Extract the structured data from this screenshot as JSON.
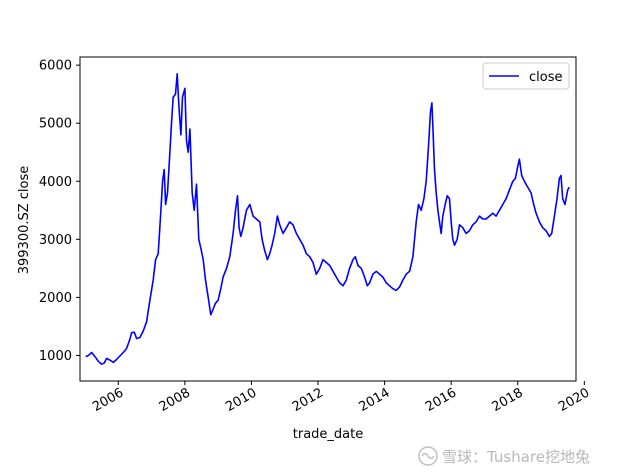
{
  "chart_data": {
    "type": "line",
    "title": "",
    "xlabel": "trade_date",
    "ylabel": "399300.SZ close",
    "xlim": [
      2004.85,
      2019.75
    ],
    "ylim": [
      560,
      6140
    ],
    "x_ticks": [
      2006,
      2008,
      2010,
      2012,
      2014,
      2016,
      2018,
      2020
    ],
    "x_tick_labels": [
      "2006",
      "2008",
      "2010",
      "2012",
      "2014",
      "2016",
      "2018",
      "2020"
    ],
    "y_ticks": [
      1000,
      2000,
      3000,
      4000,
      5000,
      6000
    ],
    "y_tick_labels": [
      "1000",
      "2000",
      "3000",
      "4000",
      "5000",
      "6000"
    ],
    "grid": false,
    "legend_position": "top-right",
    "series": [
      {
        "name": "close",
        "color": "#0000ff",
        "points": [
          [
            2005.02,
            980
          ],
          [
            2005.1,
            1000
          ],
          [
            2005.2,
            1050
          ],
          [
            2005.3,
            980
          ],
          [
            2005.4,
            900
          ],
          [
            2005.5,
            850
          ],
          [
            2005.58,
            870
          ],
          [
            2005.65,
            950
          ],
          [
            2005.75,
            920
          ],
          [
            2005.85,
            880
          ],
          [
            2005.95,
            930
          ],
          [
            2006.05,
            990
          ],
          [
            2006.15,
            1050
          ],
          [
            2006.25,
            1120
          ],
          [
            2006.35,
            1280
          ],
          [
            2006.4,
            1390
          ],
          [
            2006.48,
            1400
          ],
          [
            2006.55,
            1290
          ],
          [
            2006.65,
            1310
          ],
          [
            2006.75,
            1420
          ],
          [
            2006.85,
            1580
          ],
          [
            2006.95,
            1950
          ],
          [
            2007.05,
            2300
          ],
          [
            2007.12,
            2650
          ],
          [
            2007.2,
            2750
          ],
          [
            2007.28,
            3500
          ],
          [
            2007.33,
            4000
          ],
          [
            2007.38,
            4200
          ],
          [
            2007.42,
            3600
          ],
          [
            2007.48,
            3800
          ],
          [
            2007.55,
            4500
          ],
          [
            2007.6,
            5000
          ],
          [
            2007.65,
            5450
          ],
          [
            2007.72,
            5500
          ],
          [
            2007.77,
            5850
          ],
          [
            2007.82,
            5300
          ],
          [
            2007.88,
            4800
          ],
          [
            2007.93,
            5450
          ],
          [
            2008.0,
            5600
          ],
          [
            2008.05,
            4700
          ],
          [
            2008.1,
            4500
          ],
          [
            2008.15,
            4900
          ],
          [
            2008.22,
            3800
          ],
          [
            2008.28,
            3500
          ],
          [
            2008.35,
            3950
          ],
          [
            2008.42,
            3000
          ],
          [
            2008.48,
            2850
          ],
          [
            2008.55,
            2650
          ],
          [
            2008.62,
            2300
          ],
          [
            2008.7,
            2000
          ],
          [
            2008.78,
            1700
          ],
          [
            2008.85,
            1800
          ],
          [
            2008.92,
            1900
          ],
          [
            2009.0,
            1950
          ],
          [
            2009.08,
            2150
          ],
          [
            2009.15,
            2350
          ],
          [
            2009.25,
            2500
          ],
          [
            2009.35,
            2700
          ],
          [
            2009.45,
            3100
          ],
          [
            2009.52,
            3500
          ],
          [
            2009.58,
            3750
          ],
          [
            2009.63,
            3200
          ],
          [
            2009.68,
            3050
          ],
          [
            2009.75,
            3200
          ],
          [
            2009.85,
            3500
          ],
          [
            2009.95,
            3600
          ],
          [
            2010.05,
            3400
          ],
          [
            2010.15,
            3350
          ],
          [
            2010.25,
            3300
          ],
          [
            2010.32,
            3000
          ],
          [
            2010.4,
            2800
          ],
          [
            2010.48,
            2650
          ],
          [
            2010.55,
            2750
          ],
          [
            2010.62,
            2900
          ],
          [
            2010.7,
            3100
          ],
          [
            2010.78,
            3400
          ],
          [
            2010.85,
            3250
          ],
          [
            2010.95,
            3100
          ],
          [
            2011.05,
            3200
          ],
          [
            2011.15,
            3300
          ],
          [
            2011.25,
            3250
          ],
          [
            2011.35,
            3100
          ],
          [
            2011.45,
            3000
          ],
          [
            2011.55,
            2900
          ],
          [
            2011.65,
            2750
          ],
          [
            2011.75,
            2700
          ],
          [
            2011.85,
            2600
          ],
          [
            2011.95,
            2400
          ],
          [
            2012.05,
            2500
          ],
          [
            2012.15,
            2650
          ],
          [
            2012.25,
            2600
          ],
          [
            2012.35,
            2550
          ],
          [
            2012.45,
            2450
          ],
          [
            2012.55,
            2350
          ],
          [
            2012.65,
            2250
          ],
          [
            2012.75,
            2200
          ],
          [
            2012.85,
            2300
          ],
          [
            2012.95,
            2500
          ],
          [
            2013.05,
            2650
          ],
          [
            2013.12,
            2700
          ],
          [
            2013.2,
            2550
          ],
          [
            2013.3,
            2500
          ],
          [
            2013.4,
            2350
          ],
          [
            2013.48,
            2200
          ],
          [
            2013.55,
            2250
          ],
          [
            2013.65,
            2400
          ],
          [
            2013.75,
            2450
          ],
          [
            2013.85,
            2400
          ],
          [
            2013.95,
            2350
          ],
          [
            2014.05,
            2250
          ],
          [
            2014.15,
            2200
          ],
          [
            2014.25,
            2150
          ],
          [
            2014.35,
            2120
          ],
          [
            2014.45,
            2180
          ],
          [
            2014.55,
            2300
          ],
          [
            2014.65,
            2400
          ],
          [
            2014.75,
            2450
          ],
          [
            2014.85,
            2700
          ],
          [
            2014.95,
            3300
          ],
          [
            2015.02,
            3600
          ],
          [
            2015.1,
            3500
          ],
          [
            2015.18,
            3700
          ],
          [
            2015.25,
            4000
          ],
          [
            2015.32,
            4600
          ],
          [
            2015.38,
            5200
          ],
          [
            2015.42,
            5350
          ],
          [
            2015.46,
            4800
          ],
          [
            2015.5,
            4200
          ],
          [
            2015.55,
            3800
          ],
          [
            2015.6,
            3500
          ],
          [
            2015.65,
            3300
          ],
          [
            2015.7,
            3100
          ],
          [
            2015.75,
            3400
          ],
          [
            2015.82,
            3600
          ],
          [
            2015.88,
            3750
          ],
          [
            2015.95,
            3700
          ],
          [
            2016.0,
            3300
          ],
          [
            2016.05,
            3000
          ],
          [
            2016.1,
            2900
          ],
          [
            2016.18,
            3000
          ],
          [
            2016.25,
            3250
          ],
          [
            2016.35,
            3200
          ],
          [
            2016.45,
            3100
          ],
          [
            2016.55,
            3150
          ],
          [
            2016.65,
            3250
          ],
          [
            2016.75,
            3300
          ],
          [
            2016.85,
            3400
          ],
          [
            2016.95,
            3350
          ],
          [
            2017.05,
            3350
          ],
          [
            2017.15,
            3400
          ],
          [
            2017.25,
            3450
          ],
          [
            2017.35,
            3400
          ],
          [
            2017.45,
            3500
          ],
          [
            2017.55,
            3600
          ],
          [
            2017.65,
            3700
          ],
          [
            2017.75,
            3850
          ],
          [
            2017.85,
            4000
          ],
          [
            2017.93,
            4050
          ],
          [
            2018.0,
            4250
          ],
          [
            2018.05,
            4380
          ],
          [
            2018.12,
            4100
          ],
          [
            2018.2,
            4000
          ],
          [
            2018.3,
            3900
          ],
          [
            2018.4,
            3800
          ],
          [
            2018.48,
            3600
          ],
          [
            2018.55,
            3450
          ],
          [
            2018.65,
            3300
          ],
          [
            2018.75,
            3200
          ],
          [
            2018.85,
            3150
          ],
          [
            2018.95,
            3050
          ],
          [
            2019.02,
            3100
          ],
          [
            2019.1,
            3400
          ],
          [
            2019.18,
            3700
          ],
          [
            2019.25,
            4050
          ],
          [
            2019.3,
            4100
          ],
          [
            2019.35,
            3700
          ],
          [
            2019.42,
            3600
          ],
          [
            2019.5,
            3850
          ],
          [
            2019.55,
            3900
          ]
        ]
      }
    ]
  },
  "watermark": {
    "text": "雪球：Tushare挖地兔"
  }
}
